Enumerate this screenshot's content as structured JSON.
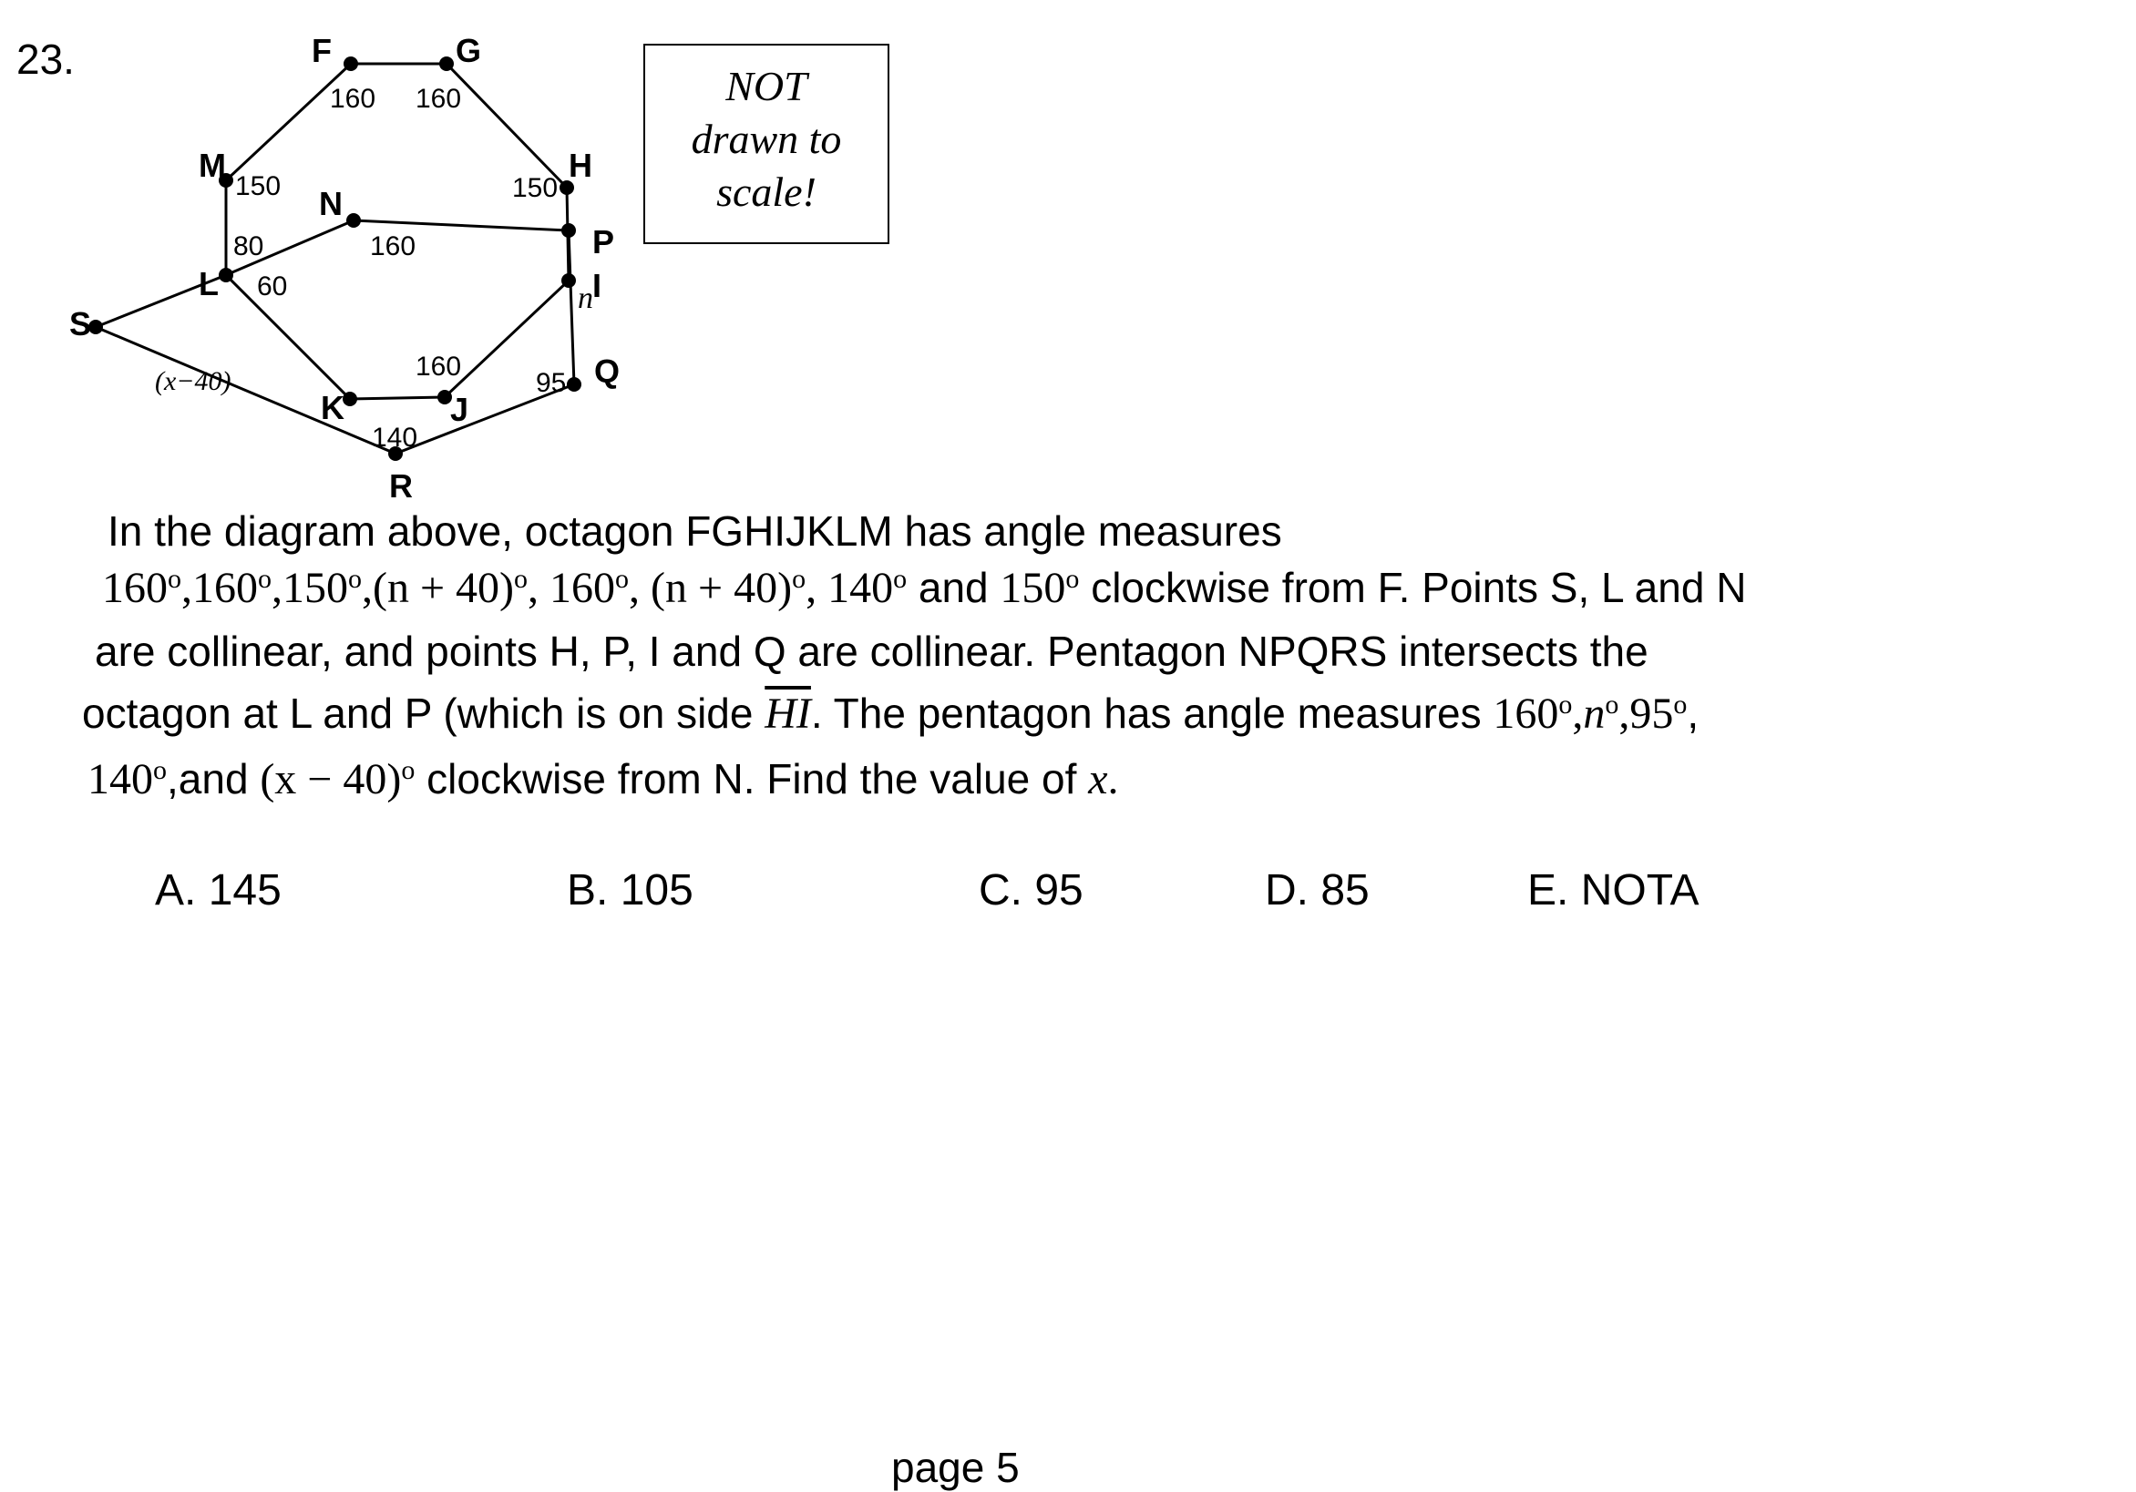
{
  "question": {
    "number": "23.",
    "note_lines": [
      "NOT",
      "drawn to",
      "scale!"
    ],
    "text": {
      "line1": "In the diagram above, octagon FGHIJKLM has angle measures",
      "line2_math1": "160",
      "line2_math2": "160",
      "line2_math3": "150",
      "line2_math4": "(n + 40)",
      "line2_math5": "160",
      "line2_math6": "(n + 40)",
      "line2_math7": "140",
      "line2_and": "and",
      "line2_math8": "150",
      "line2_tail": "clockwise from F.  Points S, L and N",
      "line3": "are collinear, and points H, P, I and Q are collinear. Pentagon NPQRS intersects the",
      "line4_a": "octagon at L and P (which is on side",
      "line4_seg": "HI",
      "line4_b": ". The pentagon has angle measures",
      "line4_m1": "160",
      "line4_m2": "n",
      "line4_m3": "95",
      "line5_m1": "140",
      "line5_and": ",and",
      "line5_m2": "(x − 40)",
      "line5_b": "clockwise from N.  Find the value of",
      "line5_var": "x",
      "line5_end": "."
    },
    "degree_symbol": "o",
    "choices": [
      "A. 145",
      "B. 105",
      "C. 95",
      "D. 85",
      "E. NOTA"
    ]
  },
  "diagram": {
    "point_labels": {
      "F": "F",
      "G": "G",
      "H": "H",
      "P": "P",
      "I": "I",
      "Q": "Q",
      "J": "J",
      "R": "R",
      "K": "K",
      "L": "L",
      "S": "S",
      "M": "M",
      "N": "N"
    },
    "angle_labels": {
      "F": "160",
      "G": "160",
      "H": "150",
      "M": "150",
      "L_top": "80",
      "L_side": "60",
      "N": "160",
      "J": "160",
      "Q": "95",
      "R": "140",
      "I": "n",
      "S": "(x−40)"
    }
  },
  "footer": {
    "page": "page  5"
  }
}
